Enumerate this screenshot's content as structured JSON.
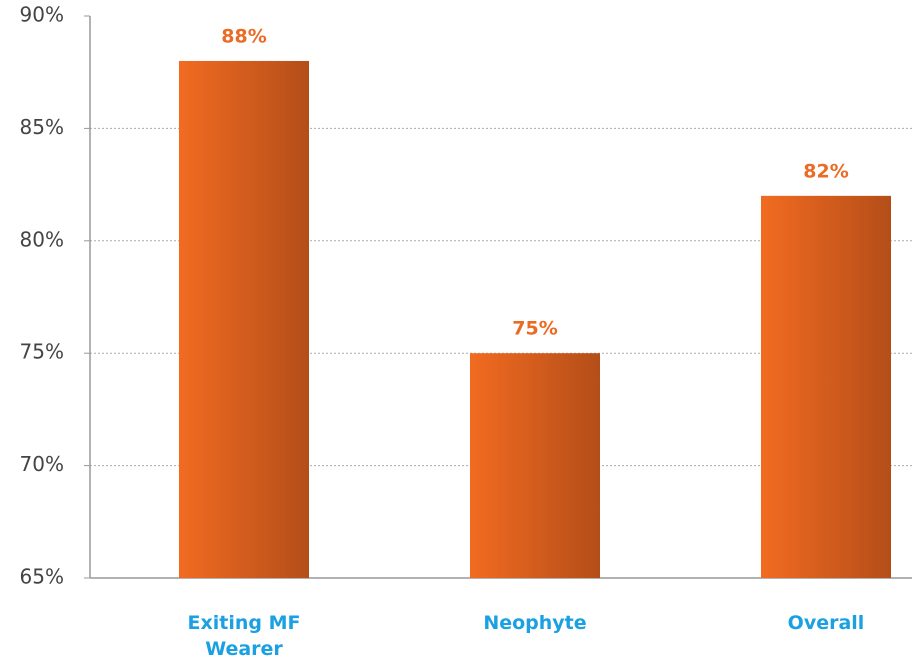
{
  "chart_data": {
    "type": "bar",
    "categories": [
      "Exiting MF Wearer",
      "Neophyte",
      "Overall"
    ],
    "values": [
      88,
      75,
      82
    ],
    "value_labels": [
      "88%",
      "75%",
      "82%"
    ],
    "color": "#ec6b24",
    "ylim": [
      65,
      90
    ],
    "yticks": [
      {
        "value": 65,
        "label": "65%"
      },
      {
        "value": 70,
        "label": "70%"
      },
      {
        "value": 75,
        "label": "75%"
      },
      {
        "value": 80,
        "label": "80%"
      },
      {
        "value": 85,
        "label": "85%"
      },
      {
        "value": 90,
        "label": "90%"
      }
    ],
    "grid": true
  }
}
